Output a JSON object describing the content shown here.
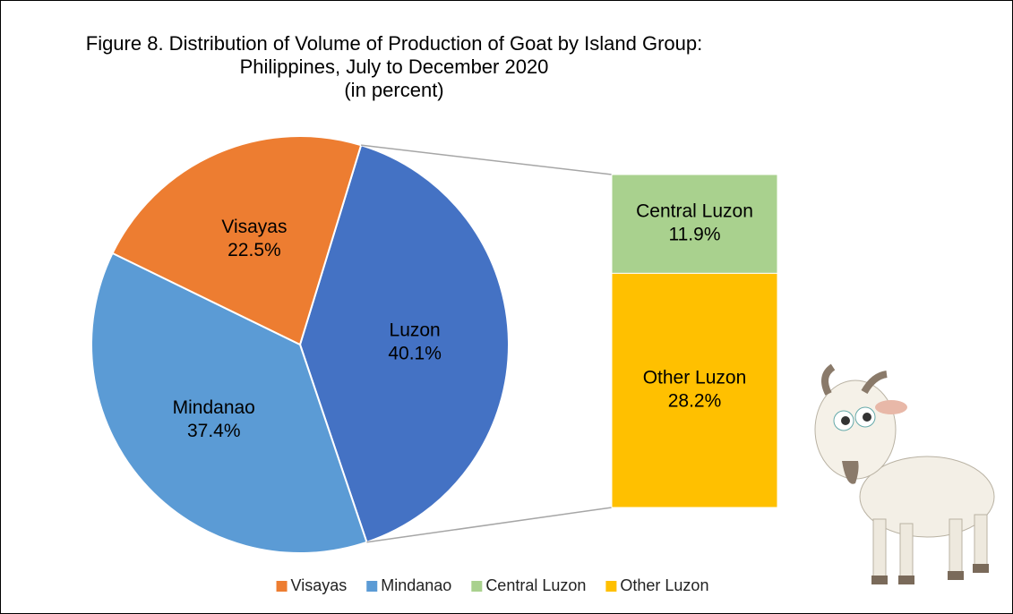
{
  "chart_data": {
    "type": "pie",
    "title": [
      "Figure 8.  Distribution of Volume of Production of Goat by Island Group:",
      "Philippines, July to December 2020",
      "(in percent)"
    ],
    "categories": [
      "Luzon",
      "Mindanao",
      "Visayas"
    ],
    "values": [
      40.1,
      37.4,
      22.5
    ],
    "value_labels": [
      "40.1%",
      "37.4%",
      "22.5%"
    ],
    "colors": [
      "#4472c4",
      "#5b9bd5",
      "#ed7d31"
    ],
    "breakout": {
      "categories": [
        "Central Luzon",
        "Other Luzon"
      ],
      "values": [
        11.9,
        28.2
      ],
      "value_labels": [
        "11.9%",
        "28.2%"
      ],
      "colors": [
        "#a9d18e",
        "#ffc000"
      ]
    }
  }
}
